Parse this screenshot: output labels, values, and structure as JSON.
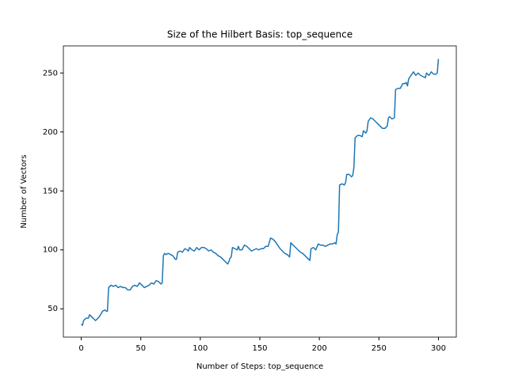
{
  "chart_data": {
    "type": "line",
    "title": "Size of the Hilbert Basis: top_sequence",
    "x_label": "Number of Steps: top_sequence",
    "y_label": "Number of Vectors",
    "x": [
      0,
      1,
      2,
      4,
      6,
      7,
      9,
      12,
      15,
      18,
      20,
      21,
      22,
      23,
      25,
      27,
      29,
      31,
      33,
      35,
      37,
      39,
      41,
      43,
      45,
      47,
      49,
      51,
      53,
      55,
      57,
      59,
      61,
      63,
      65,
      67,
      68,
      69,
      70,
      71,
      73,
      75,
      77,
      79,
      80,
      81,
      83,
      85,
      87,
      89,
      90,
      91,
      93,
      95,
      97,
      99,
      101,
      103,
      105,
      107,
      109,
      111,
      113,
      115,
      117,
      119,
      121,
      123,
      124,
      125,
      126,
      127,
      129,
      131,
      132,
      133,
      135,
      137,
      139,
      141,
      143,
      145,
      147,
      149,
      151,
      153,
      155,
      157,
      159,
      161,
      163,
      165,
      167,
      169,
      171,
      173,
      175,
      176,
      178,
      180,
      182,
      184,
      186,
      188,
      190,
      192,
      193,
      195,
      197,
      199,
      201,
      203,
      205,
      207,
      209,
      211,
      213,
      214,
      215,
      216,
      217,
      219,
      221,
      222,
      223,
      225,
      227,
      228,
      229,
      230,
      232,
      234,
      236,
      237,
      239,
      240,
      241,
      243,
      245,
      247,
      249,
      251,
      253,
      255,
      257,
      258,
      259,
      261,
      263,
      264,
      266,
      268,
      270,
      272,
      273,
      274,
      275,
      277,
      279,
      281,
      283,
      285,
      287,
      289,
      290,
      292,
      294,
      296,
      298,
      299,
      300
    ],
    "series": [
      {
        "name": "top_sequence",
        "color": "#1f77b4",
        "values": [
          37,
          36,
          40,
          42,
          42,
          45,
          43,
          40,
          43,
          48,
          49,
          48,
          48,
          68,
          70,
          69,
          70,
          68,
          69,
          68,
          68,
          66,
          66,
          69,
          70,
          69,
          72,
          70,
          68,
          69,
          70,
          72,
          71,
          74,
          73,
          71,
          72,
          95,
          97,
          96,
          97,
          96,
          95,
          92,
          92,
          98,
          99,
          98,
          101,
          100,
          99,
          102,
          100,
          99,
          102,
          100,
          102,
          102,
          101,
          99,
          100,
          98,
          97,
          95,
          94,
          92,
          90,
          88,
          90,
          93,
          94,
          102,
          101,
          100,
          103,
          100,
          100,
          104,
          103,
          101,
          99,
          100,
          101,
          100,
          101,
          101,
          103,
          103,
          110,
          109,
          107,
          104,
          101,
          99,
          97,
          96,
          94,
          106,
          104,
          102,
          100,
          98,
          97,
          95,
          93,
          91,
          101,
          102,
          100,
          105,
          104,
          104,
          103,
          104,
          105,
          105,
          106,
          105,
          113,
          115,
          155,
          156,
          155,
          157,
          164,
          164,
          162,
          163,
          170,
          195,
          197,
          197,
          196,
          201,
          199,
          201,
          209,
          212,
          211,
          209,
          207,
          205,
          203,
          203,
          205,
          212,
          213,
          211,
          212,
          236,
          237,
          237,
          241,
          241,
          242,
          239,
          245,
          248,
          251,
          248,
          250,
          248,
          247,
          246,
          250,
          248,
          251,
          249,
          249,
          250,
          262
        ]
      }
    ],
    "xlim": [
      -15,
      315
    ],
    "ylim": [
      26,
      273
    ],
    "xticks": [
      0,
      50,
      100,
      150,
      200,
      250,
      300
    ],
    "yticks": [
      50,
      100,
      150,
      200,
      250
    ]
  }
}
